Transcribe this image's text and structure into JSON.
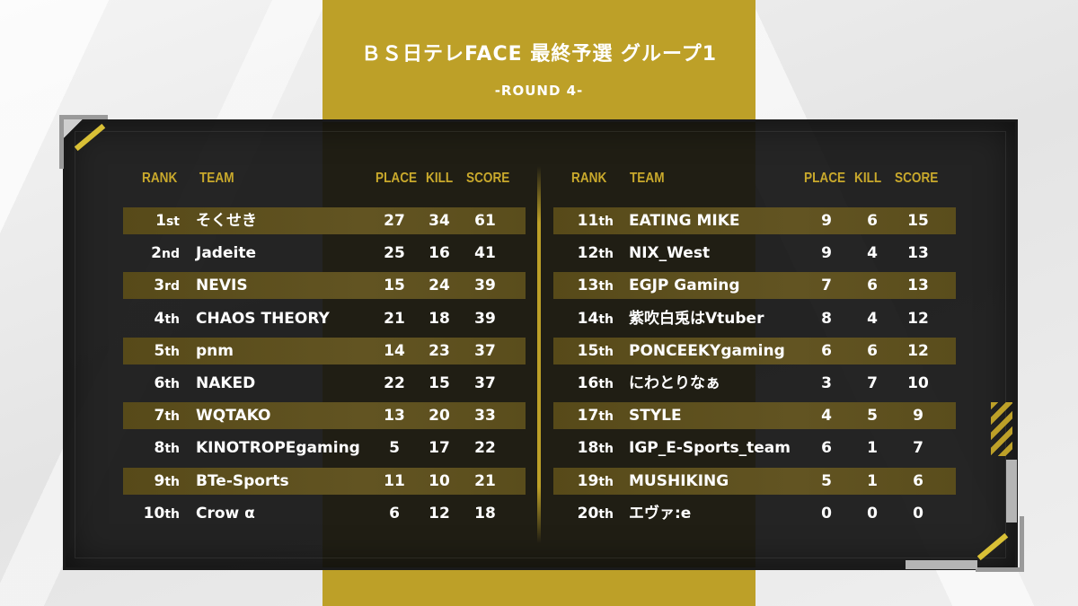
{
  "title": "ＢＳ日テレFACE 最終予選 グループ1",
  "subtitle": "-ROUND 4-",
  "headers": {
    "rank": "RANK",
    "team": "TEAM",
    "place": "PLACE",
    "kill": "KILL",
    "score": "SCORE"
  },
  "left": [
    {
      "rank": "1",
      "suffix": "st",
      "team": "そくせき",
      "place": "27",
      "kill": "34",
      "score": "61"
    },
    {
      "rank": "2",
      "suffix": "nd",
      "team": "Jadeite",
      "place": "25",
      "kill": "16",
      "score": "41"
    },
    {
      "rank": "3",
      "suffix": "rd",
      "team": "NEVIS",
      "place": "15",
      "kill": "24",
      "score": "39"
    },
    {
      "rank": "4",
      "suffix": "th",
      "team": "CHAOS THEORY",
      "place": "21",
      "kill": "18",
      "score": "39"
    },
    {
      "rank": "5",
      "suffix": "th",
      "team": "pnm",
      "place": "14",
      "kill": "23",
      "score": "37"
    },
    {
      "rank": "6",
      "suffix": "th",
      "team": "NAKED",
      "place": "22",
      "kill": "15",
      "score": "37"
    },
    {
      "rank": "7",
      "suffix": "th",
      "team": "WQTAKO",
      "place": "13",
      "kill": "20",
      "score": "33"
    },
    {
      "rank": "8",
      "suffix": "th",
      "team": "KINOTROPEgaming",
      "place": "5",
      "kill": "17",
      "score": "22"
    },
    {
      "rank": "9",
      "suffix": "th",
      "team": "BTe-Sports",
      "place": "11",
      "kill": "10",
      "score": "21"
    },
    {
      "rank": "10",
      "suffix": "th",
      "team": "Crow α",
      "place": "6",
      "kill": "12",
      "score": "18"
    }
  ],
  "right": [
    {
      "rank": "11",
      "suffix": "th",
      "team": "EATING MIKE",
      "place": "9",
      "kill": "6",
      "score": "15"
    },
    {
      "rank": "12",
      "suffix": "th",
      "team": "NIX_West",
      "place": "9",
      "kill": "4",
      "score": "13"
    },
    {
      "rank": "13",
      "suffix": "th",
      "team": "EGJP Gaming",
      "place": "7",
      "kill": "6",
      "score": "13"
    },
    {
      "rank": "14",
      "suffix": "th",
      "team": "紫吹白兎はVtuber",
      "place": "8",
      "kill": "4",
      "score": "12"
    },
    {
      "rank": "15",
      "suffix": "th",
      "team": "PONCEEKYgaming",
      "place": "6",
      "kill": "6",
      "score": "12"
    },
    {
      "rank": "16",
      "suffix": "th",
      "team": "にわとりなぁ",
      "place": "3",
      "kill": "7",
      "score": "10"
    },
    {
      "rank": "17",
      "suffix": "th",
      "team": "STYLE",
      "place": "4",
      "kill": "5",
      "score": "9"
    },
    {
      "rank": "18",
      "suffix": "th",
      "team": "IGP_E-Sports_team",
      "place": "6",
      "kill": "1",
      "score": "7"
    },
    {
      "rank": "19",
      "suffix": "th",
      "team": "MUSHIKING",
      "place": "5",
      "kill": "1",
      "score": "6"
    },
    {
      "rank": "20",
      "suffix": "th",
      "team": "エヴァ:e",
      "place": "0",
      "kill": "0",
      "score": "0"
    }
  ],
  "colors": {
    "gold": "#bda028",
    "header_gold": "#c9a92c",
    "row_highlight": "#5e5020",
    "panel": "#121212"
  }
}
